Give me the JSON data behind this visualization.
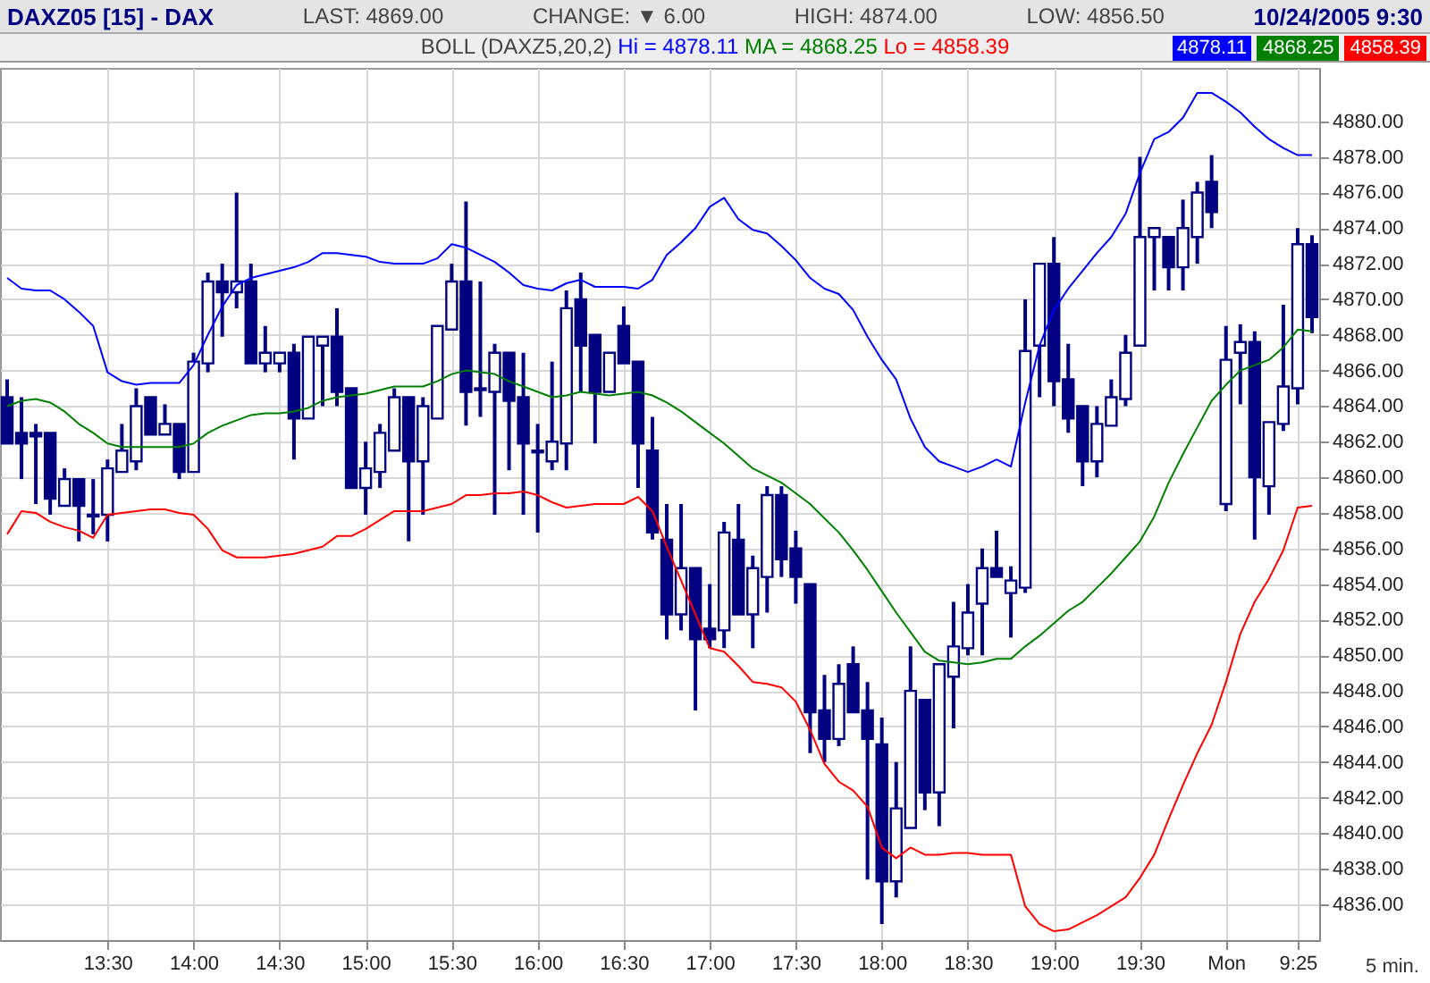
{
  "chart_data": {
    "type": "candlestick",
    "title": "DAXZ05 [15] - DAX",
    "subtitle": "BOLL (DAXZ5,20,2)",
    "annotations": [
      "LAST: 4869.00",
      "CHANGE: ▼ 6.00",
      "HIGH: 4874.00",
      "LOW: 4856.50",
      "10/24/2005 9:30",
      "5 min.",
      "4878.11",
      "4868.25",
      "4858.39"
    ],
    "categories": [
      null,
      null,
      null,
      null,
      null,
      null,
      null,
      "13:30",
      null,
      null,
      null,
      null,
      null,
      "14:00",
      null,
      null,
      null,
      null,
      null,
      "14:30",
      null,
      null,
      null,
      null,
      null,
      "15:00",
      null,
      null,
      null,
      null,
      null,
      "15:30",
      null,
      null,
      null,
      null,
      null,
      "16:00",
      null,
      null,
      null,
      null,
      null,
      "16:30",
      null,
      null,
      null,
      null,
      null,
      "17:00",
      null,
      null,
      null,
      null,
      null,
      "17:30",
      null,
      null,
      null,
      null,
      null,
      "18:00",
      null,
      null,
      null,
      null,
      null,
      "18:30",
      null,
      null,
      null,
      null,
      null,
      "19:00",
      null,
      null,
      null,
      null,
      null,
      "19:30",
      null,
      null,
      null,
      null,
      null,
      "Mon",
      null,
      null,
      null,
      null,
      "9:25",
      null
    ],
    "ohlc": [
      [
        4864.5,
        4865.5,
        4861.9,
        4861.9
      ],
      [
        4862.5,
        4864.5,
        4859.9,
        4861.9
      ],
      [
        4862.5,
        4863.0,
        4858.5,
        4862.3
      ],
      [
        4862.5,
        4862.5,
        4857.9,
        4858.8
      ],
      [
        4858.4,
        4860.5,
        4858.4,
        4859.9
      ],
      [
        4859.9,
        4859.9,
        4856.4,
        4858.4
      ],
      [
        4857.9,
        4859.9,
        4856.8,
        4857.8
      ],
      [
        4857.9,
        4861.0,
        4856.4,
        4860.5
      ],
      [
        4860.3,
        4863.0,
        4860.3,
        4861.5
      ],
      [
        4860.9,
        4865.0,
        4860.4,
        4864.0
      ],
      [
        4864.5,
        4864.5,
        4862.4,
        4862.4
      ],
      [
        4862.4,
        4864.1,
        4862.4,
        4863.0
      ],
      [
        4863.0,
        4863.0,
        4859.9,
        4860.3
      ],
      [
        4860.3,
        4867.0,
        4860.3,
        4866.5
      ],
      [
        4866.4,
        4871.5,
        4865.9,
        4871.0
      ],
      [
        4871.0,
        4872.0,
        4867.9,
        4870.4
      ],
      [
        4870.4,
        4876.0,
        4869.5,
        4871.0
      ],
      [
        4871.0,
        4872.0,
        4866.4,
        4866.4
      ],
      [
        4866.4,
        4868.5,
        4865.9,
        4867.0
      ],
      [
        4866.4,
        4867.0,
        4865.9,
        4867.0
      ],
      [
        4867.0,
        4867.5,
        4861.0,
        4863.3
      ],
      [
        4863.3,
        4867.9,
        4863.3,
        4867.9
      ],
      [
        4867.4,
        4867.9,
        4864.0,
        4867.9
      ],
      [
        4867.9,
        4869.5,
        4864.0,
        4864.8
      ],
      [
        4865.0,
        4865.0,
        4859.4,
        4859.4
      ],
      [
        4859.4,
        4862.0,
        4857.9,
        4860.5
      ],
      [
        4860.3,
        4863.0,
        4859.4,
        4862.5
      ],
      [
        4861.5,
        4865.0,
        4861.5,
        4864.5
      ],
      [
        4864.5,
        4864.5,
        4856.4,
        4860.9
      ],
      [
        4860.9,
        4864.5,
        4857.9,
        4864.0
      ],
      [
        4863.3,
        4868.5,
        4863.3,
        4868.5
      ],
      [
        4868.3,
        4872.0,
        4868.3,
        4871.0
      ],
      [
        4871.0,
        4875.5,
        4862.9,
        4864.8
      ],
      [
        4865.0,
        4871.0,
        4863.4,
        4864.9
      ],
      [
        4864.8,
        4867.5,
        4857.9,
        4867.0
      ],
      [
        4867.0,
        4867.0,
        4860.4,
        4864.3
      ],
      [
        4864.5,
        4867.0,
        4857.9,
        4861.9
      ],
      [
        4861.5,
        4863.0,
        4856.9,
        4861.4
      ],
      [
        4860.9,
        4866.5,
        4860.4,
        4862.0
      ],
      [
        4861.9,
        4870.5,
        4860.4,
        4869.5
      ],
      [
        4870.0,
        4871.5,
        4864.8,
        4867.4
      ],
      [
        4868.0,
        4868.0,
        4861.9,
        4864.8
      ],
      [
        4864.8,
        4867.0,
        4864.8,
        4867.0
      ],
      [
        4868.5,
        4869.6,
        4866.4,
        4866.4
      ],
      [
        4866.5,
        4866.5,
        4859.4,
        4861.9
      ],
      [
        4861.5,
        4863.4,
        4856.5,
        4856.9
      ],
      [
        4856.5,
        4858.5,
        4850.9,
        4852.3
      ],
      [
        4852.3,
        4858.5,
        4851.4,
        4854.9
      ],
      [
        4854.9,
        4854.9,
        4846.9,
        4850.9
      ],
      [
        4851.5,
        4854.0,
        4850.4,
        4850.9
      ],
      [
        4851.4,
        4857.5,
        4850.4,
        4856.9
      ],
      [
        4856.5,
        4858.5,
        4852.3,
        4852.3
      ],
      [
        4852.3,
        4855.6,
        4850.4,
        4854.9
      ],
      [
        4854.4,
        4859.5,
        4852.4,
        4859.0
      ],
      [
        4859.0,
        4859.5,
        4854.4,
        4855.4
      ],
      [
        4856.0,
        4857.0,
        4852.9,
        4854.4
      ],
      [
        4854.0,
        4854.0,
        4844.5,
        4846.8
      ],
      [
        4846.9,
        4848.9,
        4844.0,
        4845.3
      ],
      [
        4845.3,
        4849.5,
        4844.9,
        4848.4
      ],
      [
        4849.5,
        4850.5,
        4846.8,
        4846.8
      ],
      [
        4846.9,
        4848.5,
        4837.4,
        4845.3
      ],
      [
        4845.0,
        4846.5,
        4834.9,
        4837.3
      ],
      [
        4837.3,
        4844.0,
        4836.4,
        4841.4
      ],
      [
        4840.3,
        4850.5,
        4840.3,
        4848.0
      ],
      [
        4847.5,
        4847.5,
        4841.3,
        4842.3
      ],
      [
        4842.3,
        4849.5,
        4840.4,
        4849.5
      ],
      [
        4848.8,
        4853.0,
        4845.9,
        4850.5
      ],
      [
        4850.4,
        4854.0,
        4850.0,
        4852.4
      ],
      [
        4852.9,
        4856.0,
        4850.0,
        4854.9
      ],
      [
        4854.9,
        4857.0,
        4854.4,
        4854.4
      ],
      [
        4853.5,
        4855.0,
        4851.0,
        4854.2
      ],
      [
        4853.8,
        4870.0,
        4853.5,
        4867.1
      ],
      [
        4867.4,
        4872.0,
        4864.5,
        4872.0
      ],
      [
        4872.0,
        4873.5,
        4864.0,
        4865.4
      ],
      [
        4865.5,
        4867.5,
        4862.5,
        4863.3
      ],
      [
        4864.0,
        4864.0,
        4859.5,
        4860.9
      ],
      [
        4860.9,
        4864.0,
        4860.0,
        4863.0
      ],
      [
        4862.9,
        4865.5,
        4862.9,
        4864.5
      ],
      [
        4864.4,
        4868.0,
        4864.0,
        4867.0
      ],
      [
        4867.4,
        4878.0,
        4867.4,
        4873.5
      ],
      [
        4873.5,
        4874.0,
        4870.5,
        4874.0
      ],
      [
        4873.5,
        4873.5,
        4870.5,
        4871.8
      ],
      [
        4871.8,
        4875.6,
        4870.5,
        4874.0
      ],
      [
        4873.5,
        4876.6,
        4872.0,
        4876.0
      ],
      [
        4876.6,
        4878.1,
        4874.0,
        4874.9
      ],
      [
        4858.5,
        4868.5,
        4858.1,
        4866.6
      ],
      [
        4867.0,
        4868.6,
        4864.1,
        4867.6
      ],
      [
        4867.6,
        4868.2,
        4856.5,
        4860.0
      ],
      [
        4859.5,
        4863.1,
        4857.9,
        4863.1
      ],
      [
        4863.0,
        4869.7,
        4862.6,
        4865.1
      ],
      [
        4865.0,
        4874.0,
        4864.1,
        4873.1
      ],
      [
        4873.1,
        4873.6,
        4868.1,
        4869.0
      ]
    ],
    "color": "#000080",
    "series": [
      {
        "name": "Hi = 4878.11",
        "type": "line",
        "color": "#0000ff",
        "values": [
          4871.2,
          4870.6,
          4870.5,
          4870.5,
          4870.0,
          4869.3,
          4868.5,
          4865.9,
          4865.4,
          4865.2,
          4865.3,
          4865.3,
          4865.3,
          4866.3,
          4868.0,
          4869.6,
          4870.8,
          4871.2,
          4871.4,
          4871.6,
          4871.8,
          4872.1,
          4872.6,
          4872.6,
          4872.5,
          4872.4,
          4872.1,
          4872.0,
          4872.0,
          4872.0,
          4872.3,
          4873.1,
          4872.9,
          4872.5,
          4872.1,
          4871.5,
          4870.8,
          4870.6,
          4870.5,
          4870.9,
          4871.1,
          4870.7,
          4870.7,
          4870.7,
          4870.6,
          4871.1,
          4872.5,
          4873.2,
          4874.0,
          4875.2,
          4875.7,
          4874.5,
          4873.9,
          4873.7,
          4873.0,
          4872.2,
          4871.2,
          4870.6,
          4870.3,
          4869.4,
          4867.9,
          4866.6,
          4865.5,
          4863.3,
          4861.7,
          4860.9,
          4860.6,
          4860.3,
          4860.6,
          4861.0,
          4860.6,
          4864.2,
          4867.4,
          4869.4,
          4870.6,
          4871.6,
          4872.6,
          4873.5,
          4874.8,
          4877.1,
          4879.0,
          4879.4,
          4880.2,
          4881.6,
          4881.6,
          4881.1,
          4880.5,
          4879.7,
          4879.0,
          4878.5,
          4878.1,
          4878.1
        ]
      },
      {
        "name": "MA = 4868.25",
        "type": "line",
        "color": "#008000",
        "values": [
          4864.0,
          4864.3,
          4864.4,
          4864.2,
          4863.7,
          4863.0,
          4862.5,
          4861.9,
          4861.7,
          4861.7,
          4861.7,
          4861.7,
          4861.7,
          4861.9,
          4862.5,
          4862.9,
          4863.2,
          4863.5,
          4863.6,
          4863.6,
          4863.7,
          4863.9,
          4864.3,
          4864.5,
          4864.6,
          4864.7,
          4864.9,
          4865.1,
          4865.1,
          4865.1,
          4865.4,
          4865.8,
          4866.0,
          4865.9,
          4865.8,
          4865.4,
          4865.1,
          4864.8,
          4864.5,
          4864.6,
          4864.8,
          4864.7,
          4864.6,
          4864.7,
          4864.8,
          4864.6,
          4864.2,
          4863.7,
          4863.1,
          4862.5,
          4861.9,
          4861.2,
          4860.5,
          4860.1,
          4859.7,
          4859.1,
          4858.5,
          4857.7,
          4856.9,
          4855.9,
          4854.8,
          4853.6,
          4852.4,
          4851.3,
          4850.2,
          4849.7,
          4849.6,
          4849.5,
          4849.6,
          4849.8,
          4849.8,
          4850.5,
          4851.1,
          4851.8,
          4852.5,
          4853.0,
          4853.8,
          4854.6,
          4855.5,
          4856.4,
          4857.8,
          4859.7,
          4861.3,
          4862.8,
          4864.3,
          4865.2,
          4866.0,
          4866.3,
          4866.6,
          4867.3,
          4868.3,
          4868.2
        ]
      },
      {
        "name": "Lo = 4858.39",
        "type": "line",
        "color": "#ff0000",
        "values": [
          4856.8,
          4858.1,
          4858.0,
          4857.5,
          4857.2,
          4857.0,
          4856.6,
          4857.9,
          4858.0,
          4858.1,
          4858.2,
          4858.2,
          4858.0,
          4857.9,
          4857.1,
          4855.9,
          4855.5,
          4855.5,
          4855.5,
          4855.6,
          4855.7,
          4855.9,
          4856.1,
          4856.7,
          4856.7,
          4857.1,
          4857.6,
          4858.1,
          4858.1,
          4858.1,
          4858.3,
          4858.5,
          4859.0,
          4859.0,
          4859.1,
          4859.1,
          4859.2,
          4859.0,
          4858.6,
          4858.3,
          4858.4,
          4858.5,
          4858.5,
          4858.5,
          4858.9,
          4858.1,
          4856.1,
          4854.2,
          4852.3,
          4850.4,
          4850.2,
          4849.4,
          4848.5,
          4848.4,
          4848.2,
          4847.4,
          4845.8,
          4843.9,
          4842.9,
          4842.4,
          4841.5,
          4839.2,
          4838.6,
          4839.2,
          4838.8,
          4838.8,
          4838.9,
          4838.9,
          4838.8,
          4838.8,
          4838.8,
          4835.9,
          4834.9,
          4834.5,
          4834.6,
          4835.0,
          4835.4,
          4835.9,
          4836.4,
          4837.5,
          4838.8,
          4840.8,
          4842.7,
          4844.5,
          4846.1,
          4848.5,
          4851.2,
          4853.0,
          4854.3,
          4855.9,
          4858.3,
          4858.4
        ]
      }
    ],
    "ylim": [
      4834,
      4883
    ],
    "yticks": [
      {
        "value": 4836,
        "label": "4836.00"
      },
      {
        "value": 4838,
        "label": "4838.00"
      },
      {
        "value": 4840,
        "label": "4840.00"
      },
      {
        "value": 4842,
        "label": "4842.00"
      },
      {
        "value": 4844,
        "label": "4844.00"
      },
      {
        "value": 4846,
        "label": "4846.00"
      },
      {
        "value": 4848,
        "label": "4848.00"
      },
      {
        "value": 4850,
        "label": "4850.00"
      },
      {
        "value": 4852,
        "label": "4852.00"
      },
      {
        "value": 4854,
        "label": "4854.00"
      },
      {
        "value": 4856,
        "label": "4856.00"
      },
      {
        "value": 4858,
        "label": "4858.00"
      },
      {
        "value": 4860,
        "label": "4860.00"
      },
      {
        "value": 4862,
        "label": "4862.00"
      },
      {
        "value": 4864,
        "label": "4864.00"
      },
      {
        "value": 4866,
        "label": "4866.00"
      },
      {
        "value": 4868,
        "label": "4868.00"
      },
      {
        "value": 4870,
        "label": "4870.00"
      },
      {
        "value": 4872,
        "label": "4872.00"
      },
      {
        "value": 4874,
        "label": "4874.00"
      },
      {
        "value": 4876,
        "label": "4876.00"
      },
      {
        "value": 4878,
        "label": "4878.00"
      },
      {
        "value": 4880,
        "label": "4880.00"
      }
    ],
    "grid": true,
    "legend": "top"
  }
}
